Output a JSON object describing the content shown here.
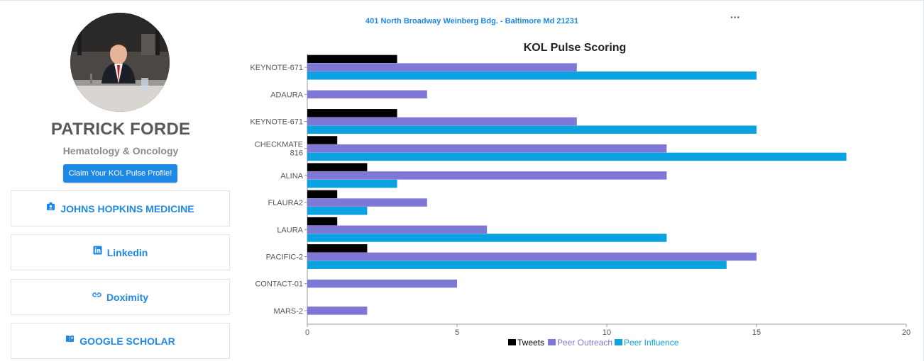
{
  "profile": {
    "name": "PATRICK FORDE",
    "specialty": "Hematology & Oncology",
    "claim_label": "Claim Your KOL Pulse Profile!",
    "links": [
      {
        "label": "JOHNS HOPKINS MEDICINE",
        "icon": "badge-icon"
      },
      {
        "label": "Linkedin",
        "icon": "linkedin-icon"
      },
      {
        "label": "Doximity",
        "icon": "link-icon"
      },
      {
        "label": "GOOGLE SCHOLAR",
        "icon": "book-icon"
      }
    ]
  },
  "header": {
    "address": "401 North Broadway Weinberg Bdg. - Baltimore Md 21231",
    "menu_label": "···"
  },
  "chart_data": {
    "type": "bar",
    "orientation": "horizontal",
    "title": "KOL Pulse Scoring",
    "categories": [
      "KEYNOTE-671",
      "ADAURA",
      "KEYNOTE-671",
      "CHECKMATE 816",
      "ALINA",
      "FLAURA2",
      "LAURA",
      "PACIFIC-2",
      "CONTACT-01",
      "MARS-2"
    ],
    "series": [
      {
        "name": "Tweets",
        "color": "#000000",
        "values": [
          3,
          0,
          3,
          1,
          2,
          1,
          1,
          2,
          0,
          0
        ]
      },
      {
        "name": "Peer Outreach",
        "color": "#7f77d6",
        "values": [
          9,
          4,
          9,
          12,
          12,
          4,
          6,
          15,
          5,
          2
        ]
      },
      {
        "name": "Peer Influence",
        "color": "#0aa2e0",
        "values": [
          15,
          0,
          15,
          18,
          3,
          2,
          12,
          14,
          0,
          0
        ]
      }
    ],
    "xlim": [
      0,
      20
    ],
    "xticks": [
      "0",
      "5",
      "10",
      "15",
      "20"
    ],
    "legend": "bottom",
    "grid": false
  }
}
